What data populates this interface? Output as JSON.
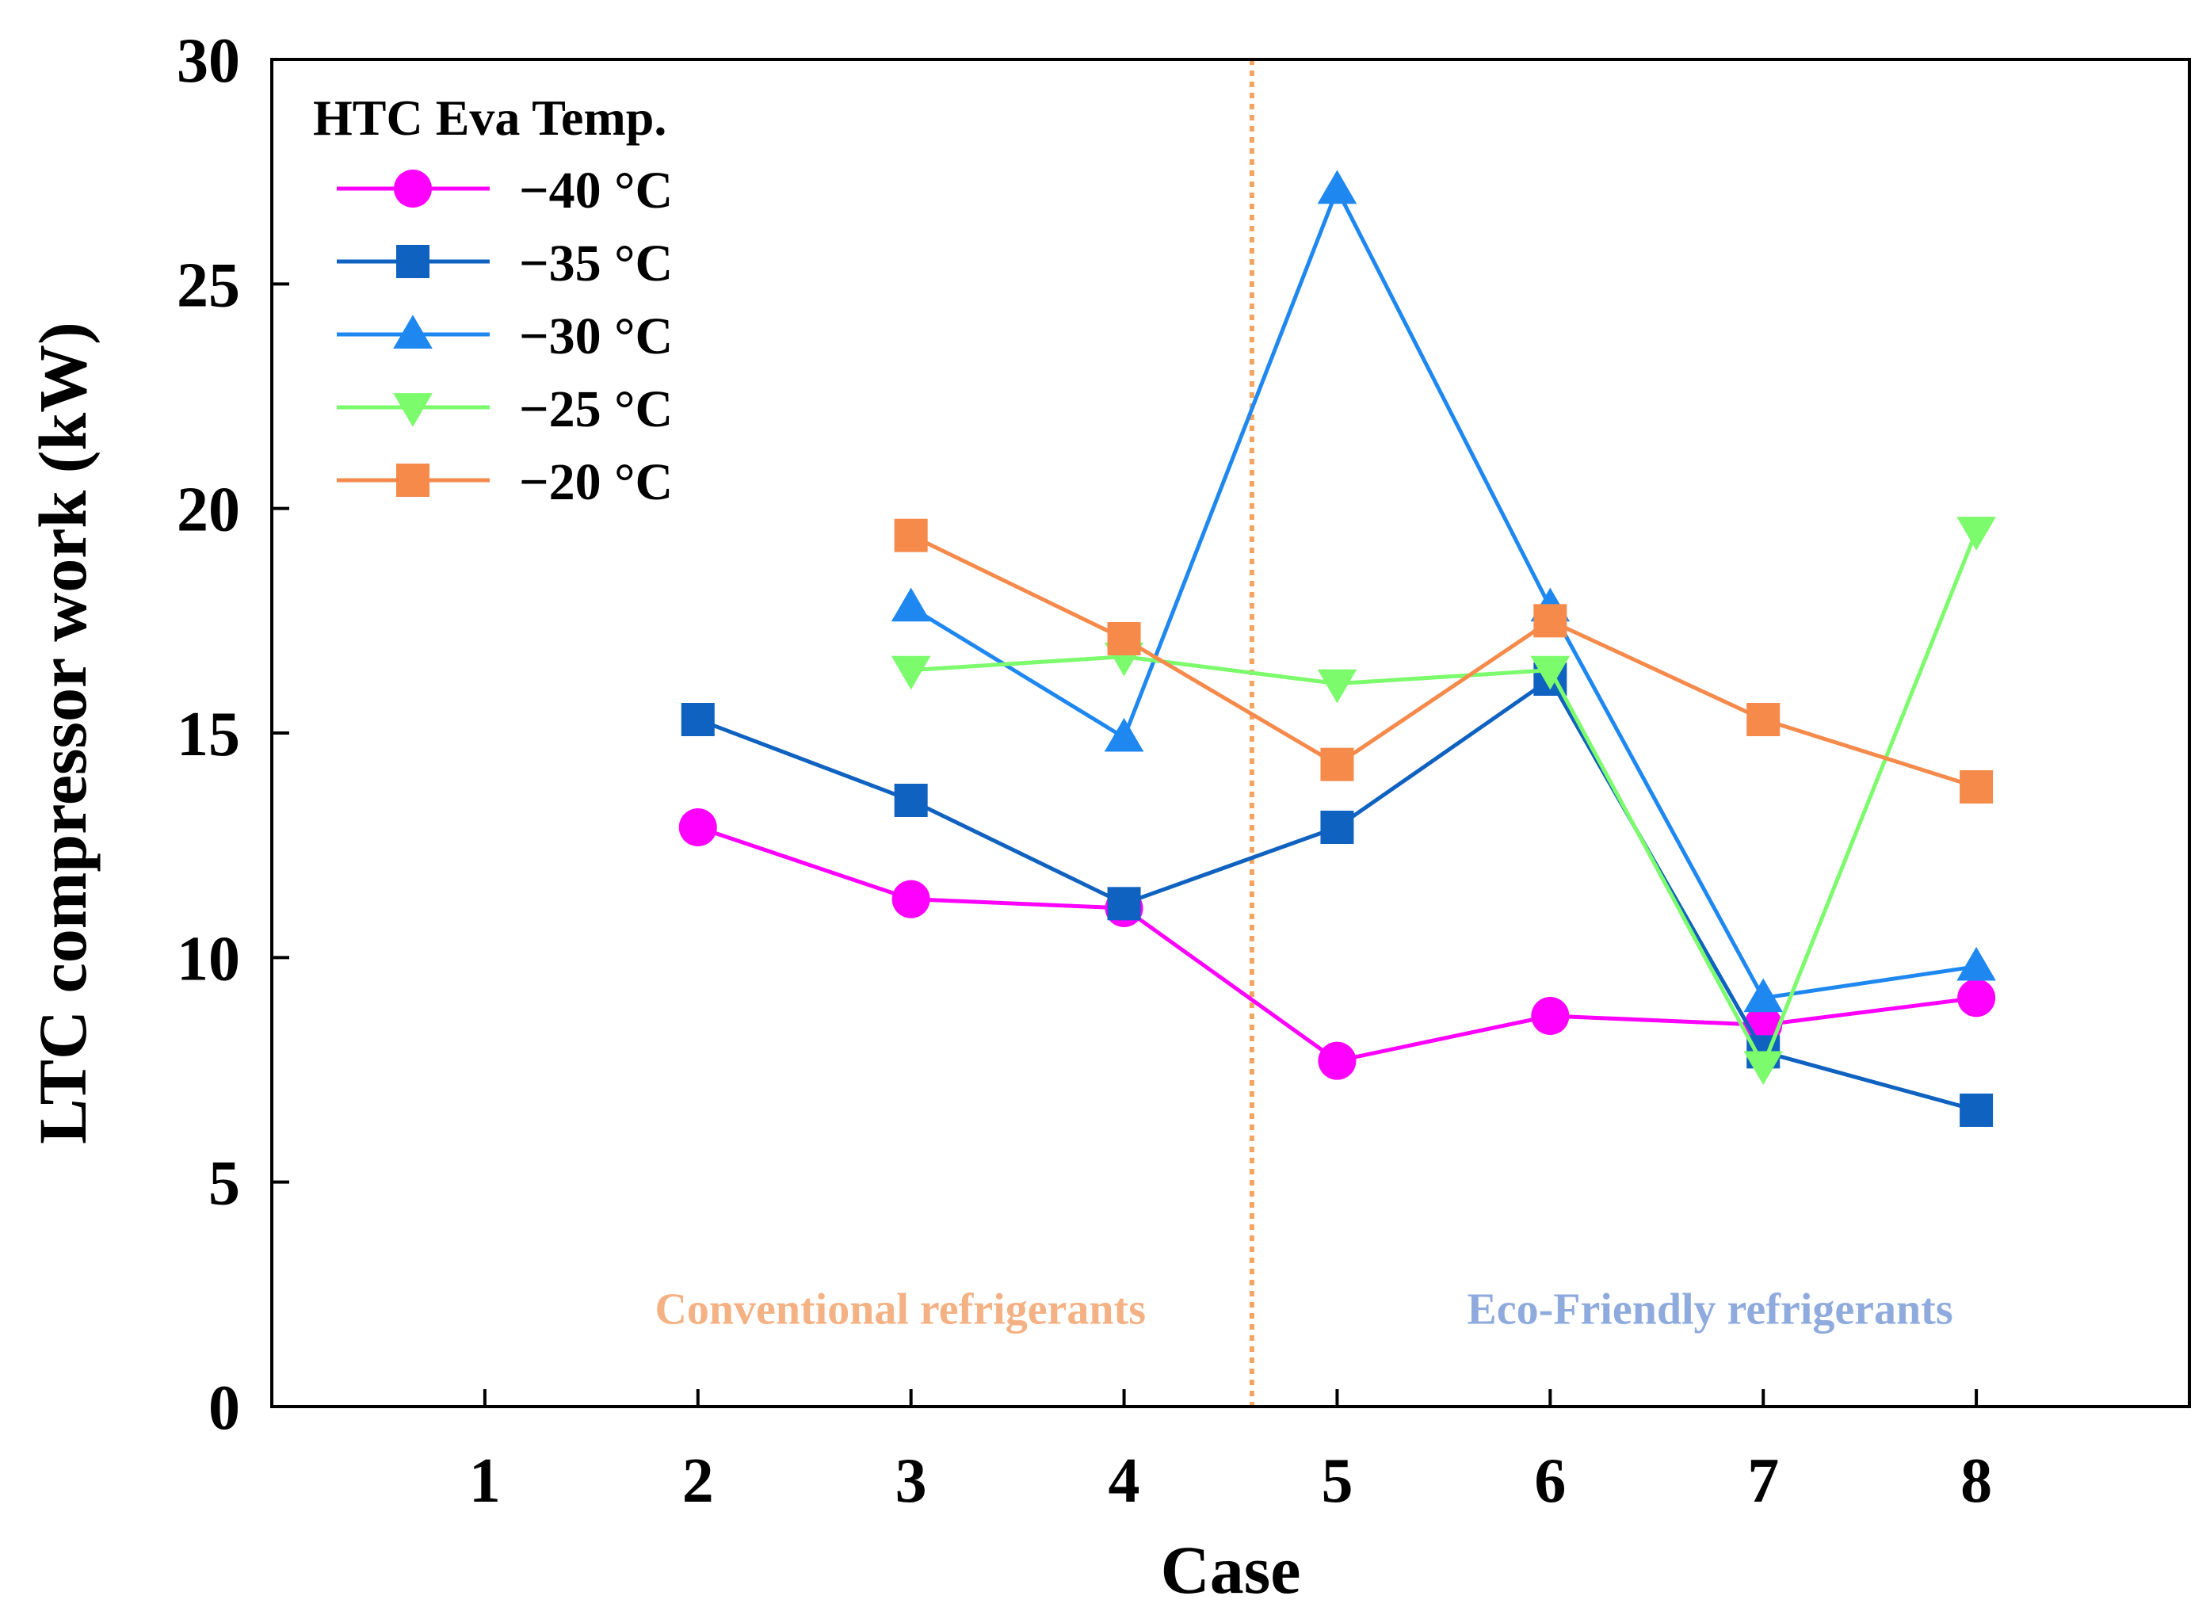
{
  "chart_data": {
    "type": "line",
    "title": "",
    "xlabel": "Case",
    "ylabel": "LTC compressor work (kW)",
    "xlim": [
      0,
      9
    ],
    "ylim": [
      0,
      30
    ],
    "x_ticks": [
      "1",
      "2",
      "3",
      "4",
      "5",
      "6",
      "7",
      "8"
    ],
    "y_ticks": [
      "0",
      "5",
      "10",
      "15",
      "20",
      "25",
      "30"
    ],
    "legend": {
      "title": "HTC Eva Temp.",
      "position": "top-left"
    },
    "divider": {
      "x": 4.6,
      "color": "#F4A460"
    },
    "annotations": [
      {
        "text": "Conventional refrigerants",
        "color": "#F4B183",
        "x": 2.95,
        "y": 2.2
      },
      {
        "text": "Eco-Friendly refrigerants",
        "color": "#8FAADC",
        "x": 6.75,
        "y": 2.2
      }
    ],
    "series": [
      {
        "name": "−40 °C",
        "color": "#FF00FF",
        "marker": "circle",
        "x": [
          2,
          3,
          4,
          5,
          6,
          7,
          8
        ],
        "values": [
          12.9,
          11.3,
          11.1,
          7.7,
          8.7,
          8.5,
          9.1
        ]
      },
      {
        "name": "−35 °C",
        "color": "#0F62C0",
        "marker": "square",
        "x": [
          2,
          3,
          4,
          5,
          6,
          7,
          8
        ],
        "values": [
          15.3,
          13.5,
          11.2,
          12.9,
          16.2,
          7.9,
          6.6
        ]
      },
      {
        "name": "−30 °C",
        "color": "#1E88F0",
        "marker": "triangle-up",
        "x": [
          3,
          4,
          5,
          6,
          7,
          8
        ],
        "values": [
          17.8,
          14.9,
          27.1,
          17.8,
          9.1,
          9.8
        ]
      },
      {
        "name": "−25 °C",
        "color": "#7CFC6C",
        "marker": "triangle-down",
        "x": [
          3,
          4,
          5,
          6,
          7,
          8
        ],
        "values": [
          16.4,
          16.7,
          16.1,
          16.4,
          7.6,
          19.5
        ]
      },
      {
        "name": "−20 °C",
        "color": "#F58A4B",
        "marker": "square",
        "x": [
          3,
          4,
          5,
          6,
          7,
          8
        ],
        "values": [
          19.4,
          17.1,
          14.3,
          17.5,
          15.3,
          13.8
        ]
      }
    ]
  }
}
